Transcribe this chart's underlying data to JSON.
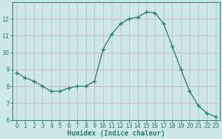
{
  "x": [
    0,
    1,
    2,
    3,
    4,
    5,
    6,
    7,
    8,
    9,
    10,
    11,
    12,
    13,
    14,
    15,
    16,
    17,
    18,
    19,
    20,
    21,
    22,
    23
  ],
  "y": [
    8.8,
    8.5,
    8.3,
    8.0,
    7.7,
    7.7,
    7.9,
    8.0,
    8.0,
    8.3,
    10.2,
    11.1,
    11.7,
    12.0,
    12.1,
    12.4,
    12.35,
    11.7,
    10.35,
    9.0,
    7.7,
    6.85,
    6.4,
    6.2
  ],
  "line_color": "#2d7d6f",
  "marker": "+",
  "marker_size": 4,
  "bg_color": "#cce8eb",
  "grid_color": "#c8b8b8",
  "xlabel": "Humidex (Indice chaleur)",
  "ylim": [
    6,
    13
  ],
  "xlim": [
    -0.5,
    23.5
  ],
  "yticks": [
    6,
    7,
    8,
    9,
    10,
    11,
    12
  ],
  "xticks": [
    0,
    1,
    2,
    3,
    4,
    5,
    6,
    7,
    8,
    9,
    10,
    11,
    12,
    13,
    14,
    15,
    16,
    17,
    18,
    19,
    20,
    21,
    22,
    23
  ],
  "xlabel_fontsize": 7,
  "tick_fontsize": 6.5,
  "line_width": 1.0,
  "spine_color": "#2d7d6f"
}
